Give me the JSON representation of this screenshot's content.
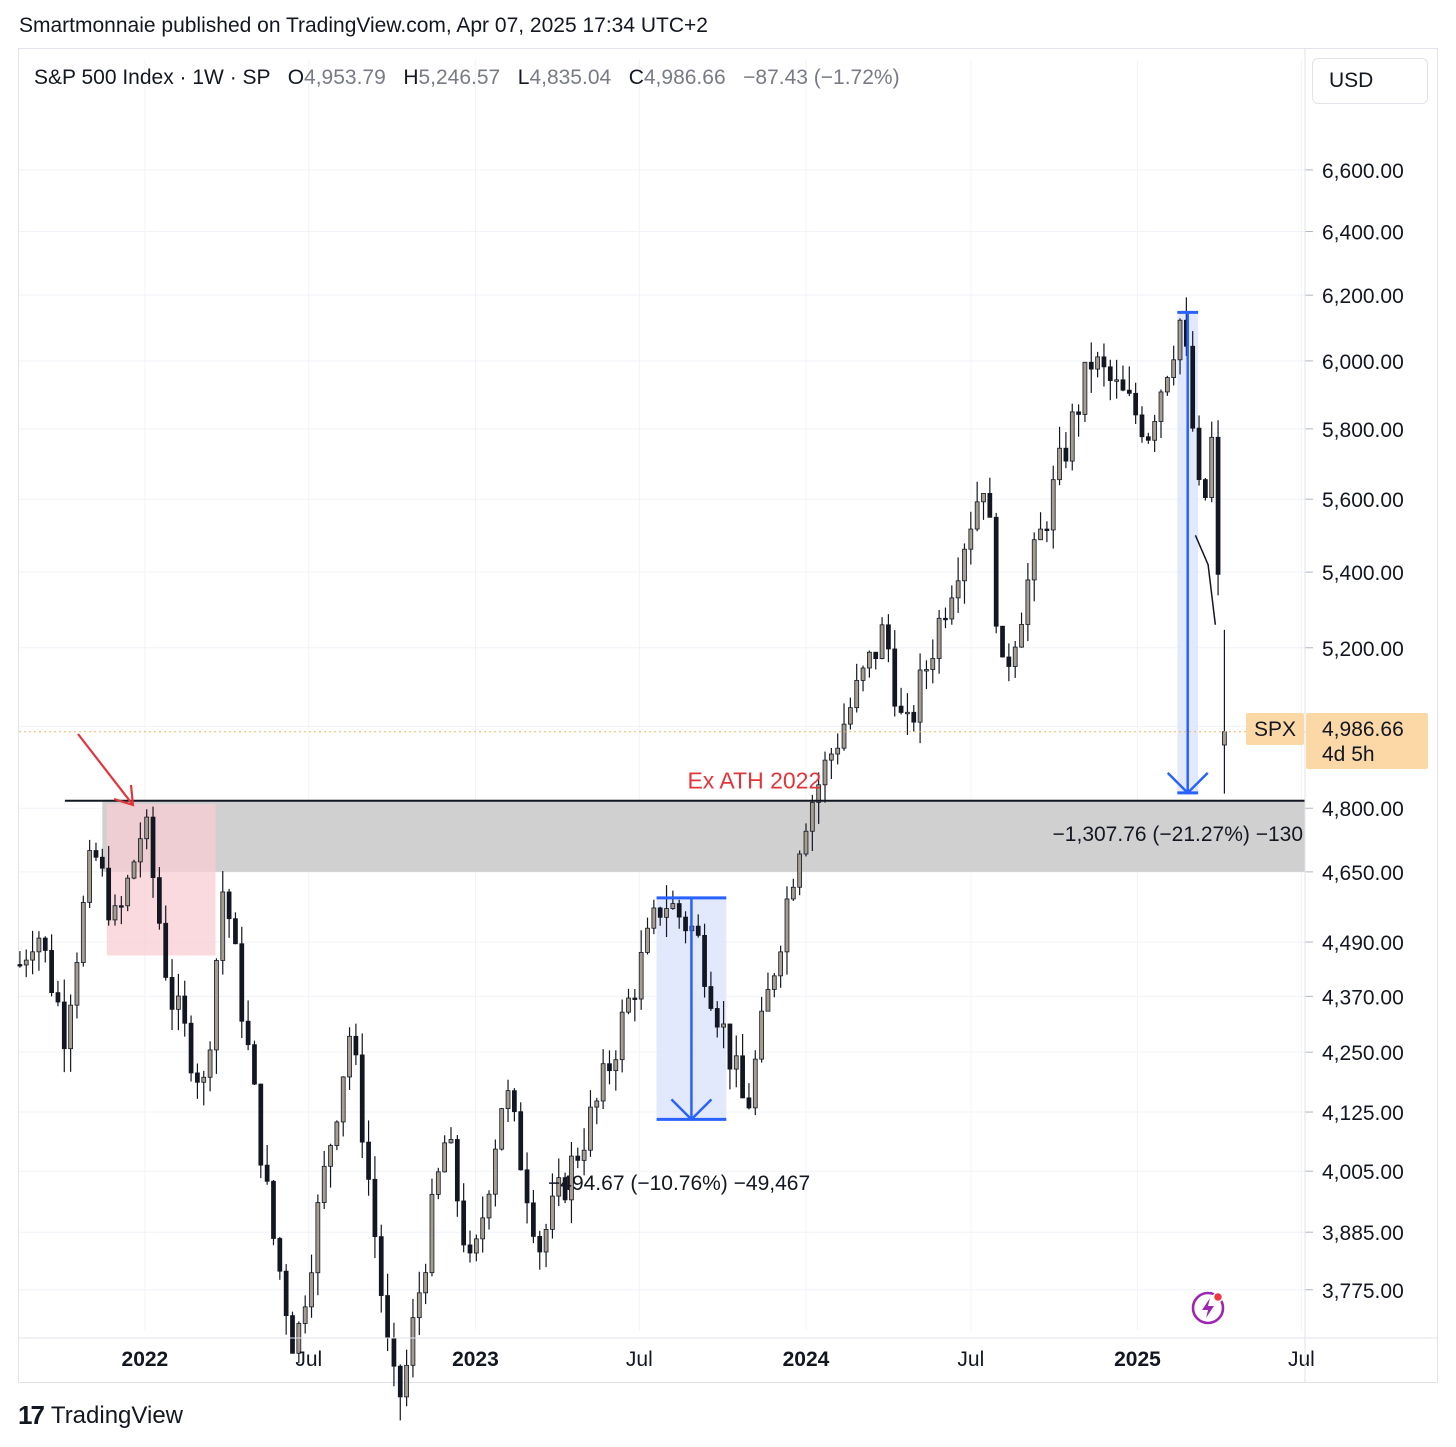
{
  "header": {
    "text": "Smartmonnaie published on TradingView.com, Apr 07, 2025 17:34 UTC+2"
  },
  "legend": {
    "symbol": "S&P 500 Index · 1W · SP",
    "o_label": "O",
    "o_value": "4,953.79",
    "h_label": "H",
    "h_value": "5,246.57",
    "l_label": "L",
    "l_value": "4,835.04",
    "c_label": "C",
    "c_value": "4,986.66",
    "change": "−87.43 (−1.72%)"
  },
  "currency_button": "USD",
  "price_tag": {
    "ticker": "SPX",
    "price": "4,986.66",
    "countdown": "4d 5h"
  },
  "annotations": {
    "ath_label": "Ex ATH 2022",
    "measure_2025": "−1,307.76 (−21.27%) −130",
    "measure_2023": "−494.67 (−10.76%) −49,467"
  },
  "footer": {
    "brand": "TradingView",
    "logo_mark": "17"
  },
  "colors": {
    "up": "#a59d90",
    "down": "#131722",
    "wick": "#131722",
    "measure_fill": "#dde5fb",
    "measure_line": "#2962ff",
    "zone_gray": "#d0d0d0",
    "zone_pink": "#f8cdd3",
    "ath_red": "#e0363b",
    "price_tag": "#fbd8a6"
  },
  "icons": [
    "tradingview-logo-icon",
    "lightning-bolt-icon",
    "red-arrow-icon"
  ],
  "chart_data": {
    "type": "candlestick",
    "symbol": "SPX",
    "timeframe": "1W",
    "y_scale": "log",
    "ylim": [
      3700,
      6800
    ],
    "y_ticks": [
      3775,
      3885,
      4005,
      4125,
      4250,
      4370,
      4490,
      4650,
      4800,
      5000,
      5200,
      5400,
      5600,
      5800,
      6000,
      6200,
      6400,
      6600
    ],
    "y_tick_labels": [
      "3,775.00",
      "3,885.00",
      "4,005.00",
      "4,125.00",
      "4,250.00",
      "4,370.00",
      "4,490.00",
      "4,650.00",
      "4,800.00",
      "",
      "5,200.00",
      "5,400.00",
      "5,600.00",
      "5,800.00",
      "6,000.00",
      "6,200.00",
      "6,400.00",
      "6,600.00"
    ],
    "x_ticks": [
      {
        "date": "2022-01-01",
        "label": "2022",
        "bold": true
      },
      {
        "date": "2022-07-01",
        "label": "Jul",
        "bold": false
      },
      {
        "date": "2023-01-01",
        "label": "2023",
        "bold": true
      },
      {
        "date": "2023-07-01",
        "label": "Jul",
        "bold": false
      },
      {
        "date": "2024-01-01",
        "label": "2024",
        "bold": true
      },
      {
        "date": "2024-07-01",
        "label": "Jul",
        "bold": false
      },
      {
        "date": "2025-01-01",
        "label": "2025",
        "bold": true
      },
      {
        "date": "2025-07-01",
        "label": "Jul",
        "bold": false
      }
    ],
    "xlim": [
      "2021-08-15",
      "2025-07-05"
    ],
    "grid": true,
    "path": [
      [
        "2021-08-16",
        4440
      ],
      [
        "2021-09-03",
        4530
      ],
      [
        "2021-10-04",
        4300
      ],
      [
        "2021-11-05",
        4700
      ],
      [
        "2021-12-01",
        4520
      ],
      [
        "2021-12-31",
        4770
      ],
      [
        "2022-01-07",
        4680
      ],
      [
        "2022-01-28",
        4380
      ],
      [
        "2022-03-08",
        4170
      ],
      [
        "2022-03-29",
        4630
      ],
      [
        "2022-05-20",
        3900
      ],
      [
        "2022-06-16",
        3660
      ],
      [
        "2022-08-16",
        4300
      ],
      [
        "2022-09-30",
        3600
      ],
      [
        "2022-10-12",
        3580
      ],
      [
        "2022-11-30",
        4080
      ],
      [
        "2022-12-28",
        3790
      ],
      [
        "2023-02-02",
        4180
      ],
      [
        "2023-03-13",
        3860
      ],
      [
        "2023-05-15",
        4140
      ],
      [
        "2023-07-27",
        4590
      ],
      [
        "2023-09-01",
        4510
      ],
      [
        "2023-10-27",
        4120
      ],
      [
        "2023-12-29",
        4770
      ],
      [
        "2024-03-28",
        5250
      ],
      [
        "2024-04-19",
        4960
      ],
      [
        "2024-07-16",
        5670
      ],
      [
        "2024-08-05",
        5120
      ],
      [
        "2024-11-11",
        6000
      ],
      [
        "2025-01-13",
        5800
      ],
      [
        "2025-02-19",
        6140
      ],
      [
        "2025-03-13",
        5520
      ],
      [
        "2025-03-25",
        5780
      ],
      [
        "2025-04-04",
        5080
      ]
    ],
    "last_candle": {
      "date": "2025-04-07",
      "open": 4953.79,
      "high": 5246.57,
      "low": 4835.04,
      "close": 4986.66
    },
    "zones": [
      {
        "name": "gray-ath-zone",
        "from": "2021-11-15",
        "to": "2025-07-05",
        "low": 4650,
        "high": 4820,
        "color": "#d0d0d0"
      },
      {
        "name": "pink-2022-top-zone",
        "from": "2021-11-20",
        "to": "2022-03-20",
        "low": 4460,
        "high": 4810,
        "color": "#f8cdd3"
      }
    ],
    "ath_line": {
      "price": 4818,
      "from": "2022-01-01",
      "to": "2025-07-05"
    },
    "measures": [
      {
        "name": "measure-2023",
        "from": "2023-07-20",
        "to": "2023-10-05",
        "top": 4590,
        "bottom": 4110,
        "change": -494.67,
        "change_pct": -10.76
      },
      {
        "name": "measure-2025",
        "from": "2025-02-14",
        "to": "2025-03-09",
        "top": 6147,
        "bottom": 4837,
        "change": -1307.76,
        "change_pct": -21.27
      }
    ],
    "trend_line": [
      [
        "2025-03-06",
        5500
      ],
      [
        "2025-03-20",
        5420
      ]
    ],
    "price_line": 4986.66
  }
}
